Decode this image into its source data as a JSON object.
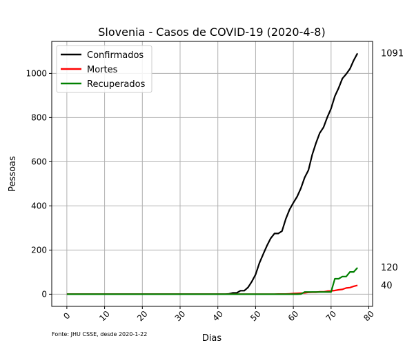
{
  "chart_data": {
    "type": "line",
    "title": "Slovenia - Casos de COVID-19 (2020-4-8)",
    "xlabel": "Dias",
    "ylabel": "Pessoas",
    "xlim": [
      -4,
      81
    ],
    "ylim": [
      -55,
      1145
    ],
    "xticks": [
      0,
      10,
      20,
      30,
      40,
      50,
      60,
      70,
      80
    ],
    "yticks": [
      0,
      200,
      400,
      600,
      800,
      1000
    ],
    "grid": true,
    "legend_position": "upper-left",
    "source_note": "Fonte: JHU CSSE, desde 2020-1-22",
    "series": [
      {
        "name": "Confirmados",
        "color": "#000000",
        "end_label": "1091",
        "points": [
          [
            0,
            0
          ],
          [
            42,
            0
          ],
          [
            43,
            2
          ],
          [
            44,
            6
          ],
          [
            45,
            6
          ],
          [
            46,
            16
          ],
          [
            47,
            16
          ],
          [
            48,
            31
          ],
          [
            49,
            57
          ],
          [
            50,
            89
          ],
          [
            51,
            141
          ],
          [
            52,
            181
          ],
          [
            53,
            219
          ],
          [
            54,
            253
          ],
          [
            55,
            275
          ],
          [
            56,
            275
          ],
          [
            57,
            286
          ],
          [
            58,
            341
          ],
          [
            59,
            383
          ],
          [
            60,
            414
          ],
          [
            61,
            442
          ],
          [
            62,
            480
          ],
          [
            63,
            528
          ],
          [
            64,
            562
          ],
          [
            65,
            632
          ],
          [
            66,
            684
          ],
          [
            67,
            730
          ],
          [
            68,
            756
          ],
          [
            69,
            802
          ],
          [
            70,
            841
          ],
          [
            71,
            897
          ],
          [
            72,
            934
          ],
          [
            73,
            977
          ],
          [
            74,
            997
          ],
          [
            75,
            1021
          ],
          [
            76,
            1059
          ],
          [
            77,
            1091
          ]
        ]
      },
      {
        "name": "Mortes",
        "color": "#ff0000",
        "end_label": "40",
        "points": [
          [
            0,
            0
          ],
          [
            55,
            0
          ],
          [
            56,
            1
          ],
          [
            57,
            1
          ],
          [
            58,
            1
          ],
          [
            59,
            2
          ],
          [
            60,
            3
          ],
          [
            61,
            4
          ],
          [
            62,
            5
          ],
          [
            63,
            6
          ],
          [
            64,
            8
          ],
          [
            65,
            9
          ],
          [
            66,
            9
          ],
          [
            67,
            11
          ],
          [
            68,
            11
          ],
          [
            69,
            14
          ],
          [
            70,
            15
          ],
          [
            71,
            17
          ],
          [
            72,
            20
          ],
          [
            73,
            22
          ],
          [
            74,
            28
          ],
          [
            75,
            30
          ],
          [
            76,
            36
          ],
          [
            77,
            40
          ]
        ]
      },
      {
        "name": "Recuperados",
        "color": "#008000",
        "end_label": "120",
        "points": [
          [
            0,
            0
          ],
          [
            61,
            0
          ],
          [
            62,
            1
          ],
          [
            63,
            10
          ],
          [
            64,
            10
          ],
          [
            65,
            10
          ],
          [
            66,
            10
          ],
          [
            67,
            10
          ],
          [
            68,
            10
          ],
          [
            69,
            10
          ],
          [
            70,
            10
          ],
          [
            71,
            70
          ],
          [
            72,
            70
          ],
          [
            73,
            80
          ],
          [
            74,
            80
          ],
          [
            75,
            101
          ],
          [
            76,
            101
          ],
          [
            77,
            120
          ]
        ]
      }
    ]
  }
}
